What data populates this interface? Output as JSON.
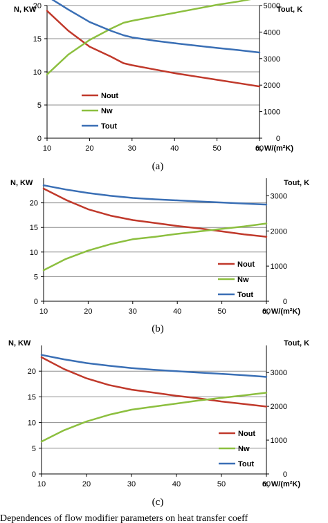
{
  "chart_data": [
    {
      "panel_label": "(a)",
      "type": "line",
      "ylabel": "N, KW",
      "y2label": "Tout, K",
      "xlabel": "α, W/(m²K)",
      "xlim": [
        10,
        60
      ],
      "ylim": [
        0,
        20
      ],
      "y2lim": [
        0,
        5000
      ],
      "xticks": [
        "10",
        "20",
        "30",
        "40",
        "50",
        "60"
      ],
      "yticks": [
        "0",
        "5",
        "10",
        "15",
        "20"
      ],
      "y2ticks": [
        "0",
        "1000",
        "2000",
        "3000",
        "4000",
        "5000"
      ],
      "grid": true,
      "legend_position": "bottom-left",
      "series": [
        {
          "name": "Nout",
          "axis": "left",
          "color": "#c0392b",
          "x": [
            10,
            15,
            20,
            25,
            28,
            30,
            35,
            40,
            45,
            50,
            55,
            60
          ],
          "y": [
            19.2,
            16.2,
            13.8,
            12.3,
            11.3,
            11.0,
            10.4,
            9.8,
            9.3,
            8.8,
            8.3,
            7.8
          ]
        },
        {
          "name": "Nw",
          "axis": "left",
          "color": "#8cbf3f",
          "x": [
            10,
            15,
            20,
            25,
            28,
            30,
            35,
            40,
            45,
            50,
            55,
            60
          ],
          "y": [
            9.6,
            12.6,
            14.8,
            16.5,
            17.4,
            17.7,
            18.3,
            18.9,
            19.5,
            20.1,
            20.6,
            21.2
          ]
        },
        {
          "name": "Tout",
          "axis": "right",
          "color": "#3a6fb5",
          "x": [
            10,
            15,
            20,
            25,
            28,
            30,
            35,
            40,
            45,
            50,
            55,
            60
          ],
          "y": [
            5350,
            4850,
            4380,
            4050,
            3880,
            3800,
            3680,
            3580,
            3490,
            3400,
            3320,
            3230
          ]
        }
      ]
    },
    {
      "panel_label": "(b)",
      "type": "line",
      "ylabel": "N, KW",
      "y2label": "Tout, K",
      "xlabel": "α, W/(m²K)",
      "xlim": [
        10,
        60
      ],
      "ylim": [
        0,
        25
      ],
      "y2lim": [
        0,
        3500
      ],
      "xticks": [
        "10",
        "20",
        "30",
        "40",
        "50",
        "60"
      ],
      "yticks": [
        "0",
        "5",
        "10",
        "15",
        "20"
      ],
      "y2ticks": [
        "0",
        "1000",
        "2000",
        "3000"
      ],
      "grid": true,
      "legend_position": "bottom-right",
      "series": [
        {
          "name": "Nout",
          "axis": "left",
          "color": "#c0392b",
          "x": [
            10,
            15,
            20,
            25,
            30,
            35,
            40,
            45,
            50,
            55,
            60
          ],
          "y": [
            22.9,
            20.6,
            18.7,
            17.4,
            16.5,
            15.9,
            15.3,
            14.8,
            14.2,
            13.6,
            13.1
          ]
        },
        {
          "name": "Nw",
          "axis": "left",
          "color": "#8cbf3f",
          "x": [
            10,
            15,
            20,
            25,
            30,
            35,
            40,
            45,
            50,
            55,
            60
          ],
          "y": [
            6.3,
            8.6,
            10.3,
            11.6,
            12.6,
            13.1,
            13.7,
            14.2,
            14.7,
            15.2,
            15.8
          ]
        },
        {
          "name": "Tout",
          "axis": "right",
          "color": "#3a6fb5",
          "x": [
            10,
            15,
            20,
            25,
            30,
            35,
            40,
            45,
            50,
            55,
            60
          ],
          "y": [
            3300,
            3180,
            3080,
            3000,
            2940,
            2900,
            2870,
            2840,
            2810,
            2780,
            2750
          ]
        }
      ]
    },
    {
      "panel_label": "(c)",
      "type": "line",
      "ylabel": "N, KW",
      "y2label": "Tout, K",
      "xlabel": "α, W/(m²K)",
      "xlim": [
        10,
        60
      ],
      "ylim": [
        0,
        25
      ],
      "y2lim": [
        0,
        3800
      ],
      "xticks": [
        "10",
        "20",
        "30",
        "40",
        "50",
        "60"
      ],
      "yticks": [
        "0",
        "5",
        "10",
        "15",
        "20"
      ],
      "y2ticks": [
        "0",
        "1000",
        "2000",
        "3000"
      ],
      "grid": true,
      "legend_position": "bottom-right",
      "series": [
        {
          "name": "Nout",
          "axis": "left",
          "color": "#c0392b",
          "x": [
            10,
            15,
            20,
            25,
            30,
            35,
            40,
            45,
            50,
            55,
            60
          ],
          "y": [
            22.7,
            20.4,
            18.6,
            17.3,
            16.4,
            15.8,
            15.2,
            14.7,
            14.1,
            13.6,
            13.1
          ]
        },
        {
          "name": "Nw",
          "axis": "left",
          "color": "#8cbf3f",
          "x": [
            10,
            15,
            20,
            25,
            30,
            35,
            40,
            45,
            50,
            55,
            60
          ],
          "y": [
            6.3,
            8.5,
            10.2,
            11.5,
            12.5,
            13.1,
            13.7,
            14.3,
            14.8,
            15.3,
            15.8
          ]
        },
        {
          "name": "Tout",
          "axis": "right",
          "color": "#3a6fb5",
          "x": [
            10,
            15,
            20,
            25,
            30,
            35,
            40,
            45,
            50,
            55,
            60
          ],
          "y": [
            3520,
            3390,
            3280,
            3200,
            3130,
            3080,
            3040,
            3000,
            2960,
            2920,
            2870
          ]
        }
      ]
    }
  ],
  "caption_fragment": "Dependences of flow modifier parameters on heat transfer coeff"
}
